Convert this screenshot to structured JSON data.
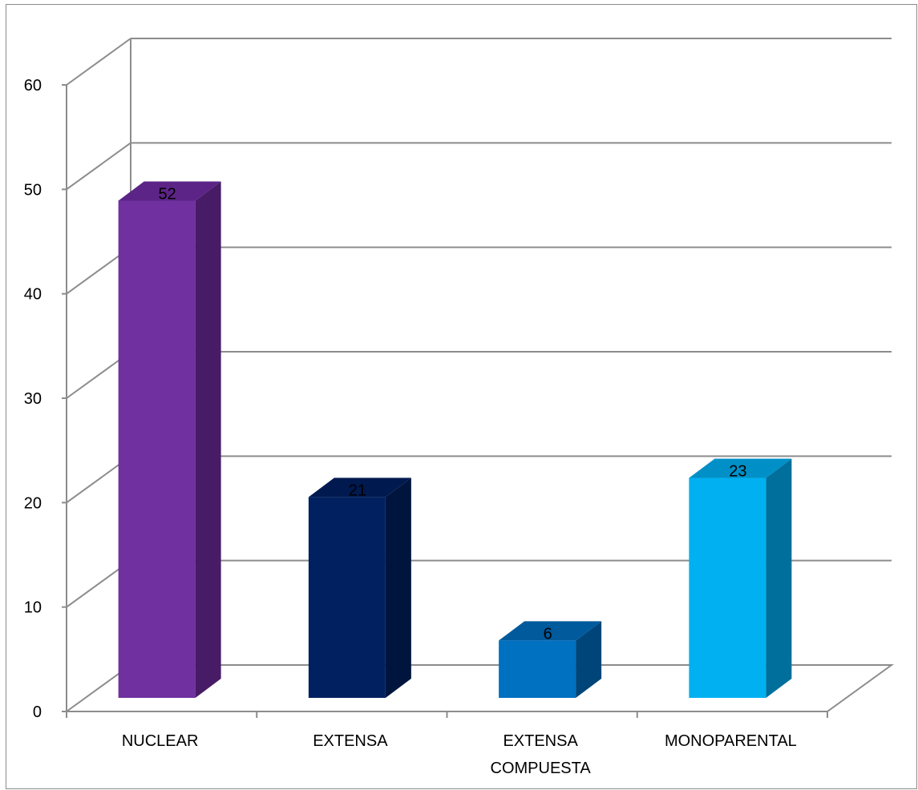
{
  "chart_data": {
    "type": "bar",
    "categories": [
      [
        "NUCLEAR"
      ],
      [
        "EXTENSA"
      ],
      [
        "EXTENSA",
        "COMPUESTA"
      ],
      [
        "MONOPARENTAL"
      ]
    ],
    "values": [
      52,
      21,
      6,
      23
    ],
    "value_labels": [
      "52",
      "21",
      "6",
      "23"
    ],
    "ylim": [
      0,
      60
    ],
    "y_ticks": [
      "0",
      "10",
      "20",
      "30",
      "40",
      "50",
      "60"
    ],
    "grid": true,
    "three_d": true,
    "legend": "none",
    "colors": {
      "front": [
        "#7030a0",
        "#002060",
        "#0070c0",
        "#00b0f0"
      ],
      "side": [
        "#481b66",
        "#00153d",
        "#00457a",
        "#006f9c"
      ],
      "top": [
        "#5c2486",
        "#001a50",
        "#005a9c",
        "#0090c7"
      ],
      "grid": "#8c8c8c",
      "axis": "#8c8c8c"
    }
  }
}
